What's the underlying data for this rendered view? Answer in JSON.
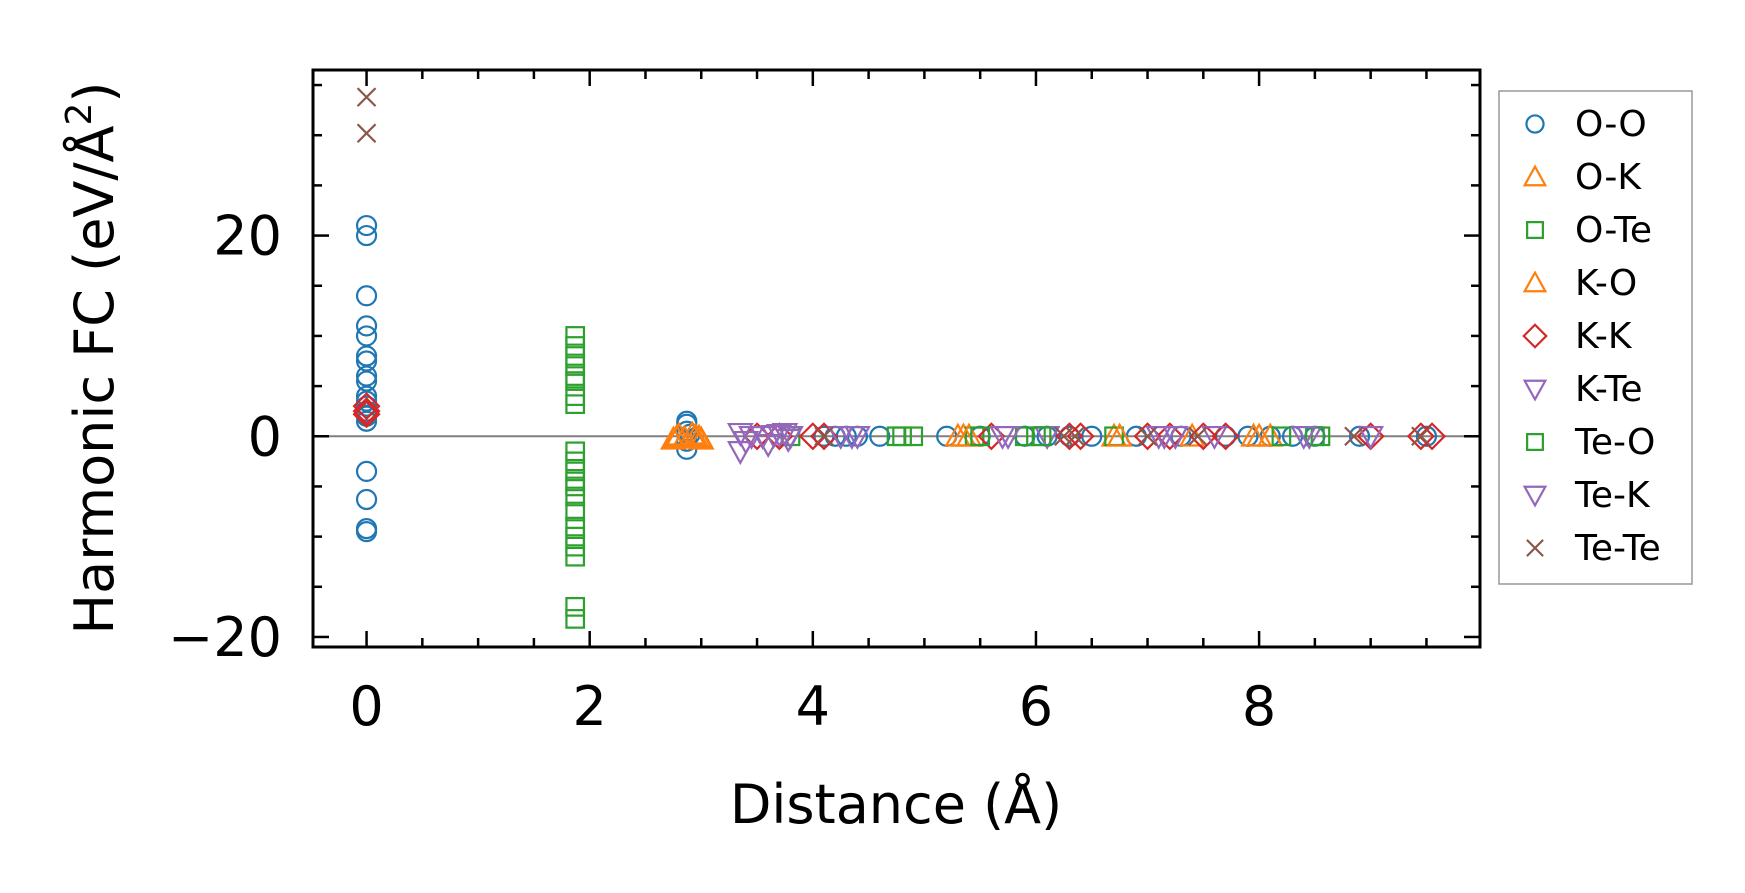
{
  "chart_data": {
    "type": "scatter",
    "xlabel": "Distance (Å)",
    "ylabel": "Harmonic FC (eV/Å",
    "ylabel_sup": "2",
    "ylabel_close": ")",
    "xlim": [
      -0.48,
      9.98
    ],
    "ylim": [
      -21,
      36.5
    ],
    "xticks": [
      0,
      2,
      4,
      6,
      8
    ],
    "xtick_labels": [
      "0",
      "2",
      "4",
      "6",
      "8"
    ],
    "yticks": [
      -20,
      0,
      20
    ],
    "ytick_labels": [
      "−20",
      "0",
      "20"
    ],
    "x_minor_step": 0.5,
    "y_minor_step": 5,
    "zero_line": 0,
    "legend_position": "outside-right",
    "series": [
      {
        "name": "O-O",
        "marker": "circle",
        "color": "#1f77b4",
        "points": [
          [
            0,
            21
          ],
          [
            0,
            20
          ],
          [
            0,
            14
          ],
          [
            0,
            11
          ],
          [
            0,
            10
          ],
          [
            0,
            8
          ],
          [
            0,
            7.5
          ],
          [
            0,
            6
          ],
          [
            0,
            5.5
          ],
          [
            0,
            4
          ],
          [
            0,
            3.5
          ],
          [
            0,
            3
          ],
          [
            0,
            2.5
          ],
          [
            0,
            2
          ],
          [
            0,
            1.5
          ],
          [
            0,
            -3.5
          ],
          [
            0,
            -6.3
          ],
          [
            0,
            -9.2
          ],
          [
            0,
            -9.5
          ],
          [
            2.87,
            1.5
          ],
          [
            2.87,
            1.2
          ],
          [
            2.87,
            0.5
          ],
          [
            2.87,
            -0.5
          ],
          [
            2.87,
            -1.3
          ],
          [
            2.9,
            0.2
          ],
          [
            4.1,
            0
          ],
          [
            4.2,
            0
          ],
          [
            4.3,
            0
          ],
          [
            4.4,
            0
          ],
          [
            4.6,
            0
          ],
          [
            5.2,
            0
          ],
          [
            5.5,
            0
          ],
          [
            5.9,
            0
          ],
          [
            6.1,
            0
          ],
          [
            6.3,
            0
          ],
          [
            6.5,
            0
          ],
          [
            6.9,
            0
          ],
          [
            7.3,
            0
          ],
          [
            7.7,
            0
          ],
          [
            7.9,
            0
          ],
          [
            8.1,
            0
          ],
          [
            8.3,
            0
          ],
          [
            8.5,
            0
          ],
          [
            8.9,
            0
          ],
          [
            9.5,
            0
          ]
        ]
      },
      {
        "name": "O-K",
        "marker": "triangle-up",
        "color": "#ff7f0e",
        "points": [
          [
            2.75,
            -0.3
          ],
          [
            2.8,
            0.1
          ],
          [
            2.85,
            -0.2
          ],
          [
            2.95,
            0.0
          ],
          [
            3.0,
            -0.3
          ],
          [
            5.3,
            0
          ],
          [
            5.35,
            0
          ],
          [
            6.7,
            0
          ],
          [
            7.4,
            0
          ],
          [
            7.95,
            0
          ],
          [
            8.1,
            0
          ]
        ]
      },
      {
        "name": "O-Te",
        "marker": "square",
        "color": "#2ca02c",
        "points": [
          [
            1.87,
            10
          ],
          [
            1.87,
            9
          ],
          [
            1.87,
            8
          ],
          [
            1.87,
            7
          ],
          [
            1.87,
            6
          ],
          [
            1.87,
            4
          ],
          [
            1.87,
            3.2
          ],
          [
            1.87,
            -1.5
          ],
          [
            1.87,
            -2.5
          ],
          [
            1.87,
            -3.5
          ],
          [
            1.87,
            -5
          ],
          [
            1.87,
            -6
          ],
          [
            1.87,
            -7.5
          ],
          [
            1.87,
            -9
          ],
          [
            1.87,
            -10
          ],
          [
            1.87,
            -11
          ],
          [
            1.87,
            -12
          ],
          [
            1.87,
            -17
          ],
          [
            1.87,
            -18.2
          ],
          [
            3.8,
            0
          ],
          [
            4.75,
            0
          ],
          [
            4.9,
            0
          ],
          [
            5.45,
            0
          ],
          [
            5.9,
            0
          ],
          [
            6.0,
            0
          ],
          [
            6.7,
            0
          ],
          [
            8.2,
            0
          ],
          [
            8.5,
            0
          ]
        ]
      },
      {
        "name": "K-O",
        "marker": "triangle-up",
        "color": "#ff7f0e",
        "points": [
          [
            2.78,
            -0.1
          ],
          [
            2.92,
            0.2
          ],
          [
            2.98,
            -0.1
          ],
          [
            5.4,
            0
          ],
          [
            6.75,
            0
          ],
          [
            8.0,
            0
          ]
        ]
      },
      {
        "name": "K-K",
        "marker": "diamond",
        "color": "#d62728",
        "points": [
          [
            0,
            3.0
          ],
          [
            0,
            2.5
          ],
          [
            0,
            2.2
          ],
          [
            3.5,
            0
          ],
          [
            3.7,
            0
          ],
          [
            4.0,
            0
          ],
          [
            4.1,
            0
          ],
          [
            5.6,
            0
          ],
          [
            6.3,
            0
          ],
          [
            6.4,
            0
          ],
          [
            7.0,
            0
          ],
          [
            7.2,
            0
          ],
          [
            7.5,
            0
          ],
          [
            7.7,
            0
          ],
          [
            9.0,
            0
          ],
          [
            9.45,
            0
          ],
          [
            9.55,
            0
          ]
        ]
      },
      {
        "name": "K-Te",
        "marker": "triangle-down",
        "color": "#9467bd",
        "points": [
          [
            3.35,
            0.3
          ],
          [
            3.35,
            -1.5
          ],
          [
            3.4,
            -0.5
          ],
          [
            3.55,
            0
          ],
          [
            3.6,
            -0.8
          ],
          [
            3.7,
            0.2
          ],
          [
            3.75,
            0.3
          ],
          [
            3.8,
            0
          ],
          [
            4.25,
            0
          ],
          [
            4.4,
            0
          ],
          [
            5.7,
            0
          ],
          [
            6.1,
            0
          ],
          [
            7.1,
            0
          ],
          [
            7.25,
            0
          ],
          [
            7.6,
            0
          ],
          [
            8.45,
            0
          ],
          [
            9.0,
            0
          ]
        ]
      },
      {
        "name": "Te-O",
        "marker": "square",
        "color": "#2ca02c",
        "points": [
          [
            1.87,
            5.5
          ],
          [
            1.87,
            -4.5
          ],
          [
            4.8,
            0
          ],
          [
            5.5,
            0
          ],
          [
            6.05,
            0
          ],
          [
            8.55,
            0
          ]
        ]
      },
      {
        "name": "Te-K",
        "marker": "triangle-down",
        "color": "#9467bd",
        "points": [
          [
            3.45,
            0
          ],
          [
            3.65,
            0.1
          ],
          [
            3.78,
            -0.3
          ],
          [
            4.35,
            0
          ],
          [
            5.75,
            0
          ],
          [
            7.15,
            0
          ],
          [
            8.4,
            0
          ]
        ]
      },
      {
        "name": "Te-Te",
        "marker": "x",
        "color": "#8c564b",
        "points": [
          [
            0,
            33.8
          ],
          [
            0,
            30.2
          ],
          [
            4.1,
            0
          ],
          [
            6.25,
            0
          ],
          [
            6.35,
            0
          ],
          [
            7.0,
            0
          ],
          [
            7.45,
            0
          ],
          [
            8.85,
            0
          ],
          [
            9.45,
            0
          ]
        ]
      }
    ]
  }
}
